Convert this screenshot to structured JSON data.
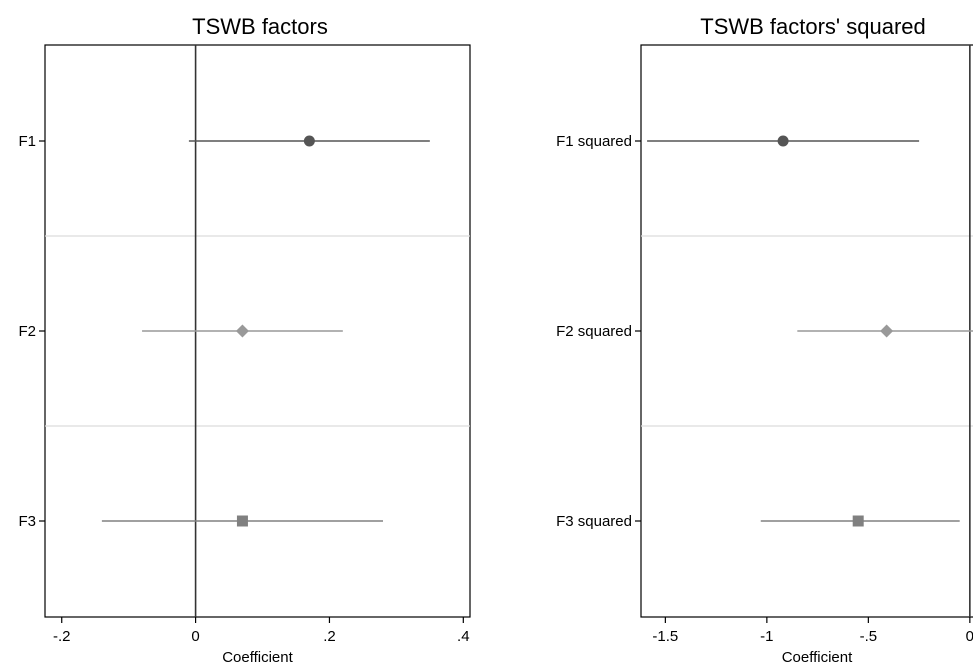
{
  "chart_data": [
    {
      "type": "coefficient-plot",
      "title": "TSWB factors",
      "xlabel": "Coefficient",
      "xlim": [
        -0.225,
        0.41
      ],
      "xticks": [
        {
          "value": -0.2,
          "label": "-.2"
        },
        {
          "value": 0,
          "label": "0"
        },
        {
          "value": 0.2,
          "label": ".2"
        },
        {
          "value": 0.4,
          "label": ".4"
        }
      ],
      "reference_line": 0,
      "grid": "horizontal separators between rows",
      "rows": [
        {
          "label": "F1",
          "estimate": 0.17,
          "ci": [
            -0.01,
            0.35
          ],
          "marker": "circle",
          "color": "#555555"
        },
        {
          "label": "F2",
          "estimate": 0.07,
          "ci": [
            -0.08,
            0.22
          ],
          "marker": "diamond",
          "color": "#999999"
        },
        {
          "label": "F3",
          "estimate": 0.07,
          "ci": [
            -0.14,
            0.28
          ],
          "marker": "square",
          "color": "#808080"
        }
      ]
    },
    {
      "type": "coefficient-plot",
      "title": "TSWB factors' squared",
      "xlabel": "Coefficient",
      "xlim": [
        -1.62,
        0.05
      ],
      "xticks": [
        {
          "value": -1.5,
          "label": "-1.5"
        },
        {
          "value": -1,
          "label": "-1"
        },
        {
          "value": -0.5,
          "label": "-.5"
        },
        {
          "value": 0,
          "label": "0"
        }
      ],
      "reference_line": 0,
      "grid": "horizontal separators between rows",
      "rows": [
        {
          "label": "F1 squared",
          "estimate": -0.92,
          "ci": [
            -1.59,
            -0.25
          ],
          "marker": "circle",
          "color": "#555555"
        },
        {
          "label": "F2 squared",
          "estimate": -0.41,
          "ci": [
            -0.85,
            0.05
          ],
          "marker": "diamond",
          "color": "#999999"
        },
        {
          "label": "F3 squared",
          "estimate": -0.55,
          "ci": [
            -1.03,
            -0.05
          ],
          "marker": "square",
          "color": "#808080"
        }
      ]
    }
  ]
}
